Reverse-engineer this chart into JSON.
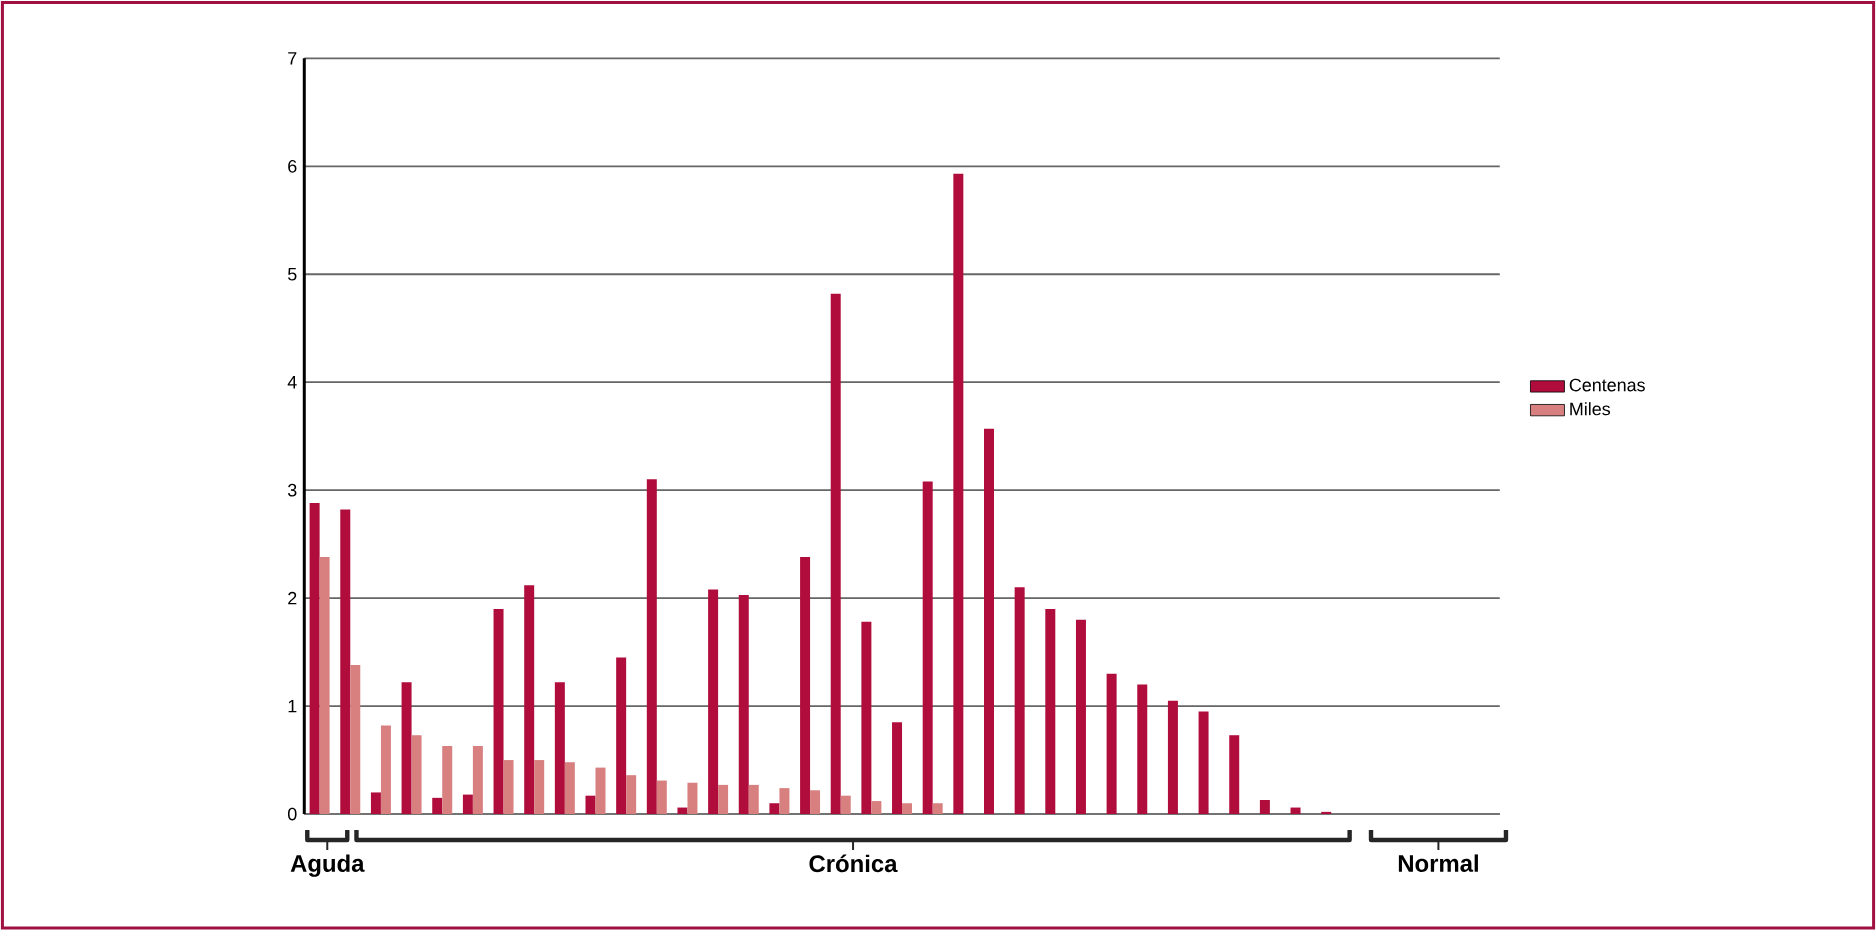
{
  "chart_data": {
    "type": "bar",
    "categories": [
      null,
      null,
      null,
      null,
      null,
      null,
      null,
      null,
      null,
      null,
      null,
      null,
      null,
      null,
      null,
      null,
      null,
      null,
      null,
      null,
      null,
      null,
      null,
      null,
      null,
      null,
      null,
      null,
      null,
      null,
      null,
      null,
      null,
      null,
      null,
      null,
      null,
      null,
      null
    ],
    "series": [
      {
        "name": "Centenas",
        "color": "#b00d3c",
        "values": [
          2.88,
          2.82,
          0.2,
          1.22,
          0.15,
          0.18,
          1.9,
          2.12,
          1.22,
          0.17,
          1.45,
          3.1,
          0.06,
          2.08,
          2.03,
          0.1,
          2.38,
          4.82,
          1.78,
          0.85,
          3.08,
          5.93,
          3.57,
          2.1,
          1.9,
          1.8,
          1.3,
          1.2,
          1.05,
          0.95,
          0.73,
          0.13,
          0.06,
          0.02,
          0,
          0,
          0,
          0,
          0
        ]
      },
      {
        "name": "Miles",
        "color": "#d88080",
        "values": [
          2.38,
          1.38,
          0.82,
          0.73,
          0.63,
          0.63,
          0.5,
          0.5,
          0.48,
          0.43,
          0.36,
          0.31,
          0.29,
          0.27,
          0.27,
          0.24,
          0.22,
          0.17,
          0.12,
          0.1,
          0.1,
          0,
          0,
          0,
          0,
          0,
          0,
          0,
          0,
          0,
          0,
          0,
          0,
          0,
          0,
          0,
          0,
          0,
          0
        ]
      }
    ],
    "ylim": [
      0,
      7
    ],
    "yticks": [
      0,
      1,
      2,
      3,
      4,
      5,
      6,
      7
    ],
    "grid": "y",
    "legend": "right",
    "annotations": [
      "Aguda",
      "Crónica",
      "Normal"
    ]
  }
}
